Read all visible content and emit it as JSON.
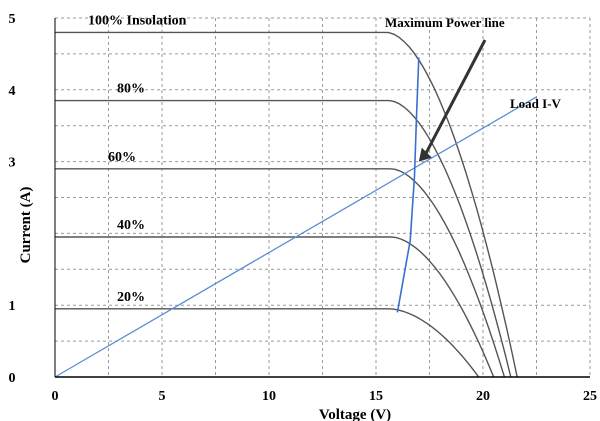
{
  "chart_data": {
    "type": "line",
    "title": "",
    "xlabel": "Voltage (V)",
    "ylabel": "Current (A)",
    "xlim": [
      0,
      25
    ],
    "ylim": [
      0,
      5
    ],
    "x_ticks": [
      "0",
      "5",
      "10",
      "15",
      "20",
      "25"
    ],
    "y_ticks": [
      "0",
      "1",
      "3",
      "4",
      "5"
    ],
    "y_tick_values": [
      0,
      1,
      3,
      4,
      5
    ],
    "grid": true,
    "grid_style": "dashed",
    "series": [
      {
        "name": "100% Insolation",
        "isc": 4.8,
        "voc": 21.6,
        "knee": 15.5
      },
      {
        "name": "80%",
        "isc": 3.85,
        "voc": 21.3,
        "knee": 15.6
      },
      {
        "name": "60%",
        "isc": 2.9,
        "voc": 21.0,
        "knee": 15.7
      },
      {
        "name": "40%",
        "isc": 1.95,
        "voc": 20.5,
        "knee": 15.7
      },
      {
        "name": "20%",
        "isc": 0.95,
        "voc": 19.8,
        "knee": 15.6
      }
    ],
    "load_line": {
      "name": "Load I-V",
      "points": [
        [
          0,
          0
        ],
        [
          22.5,
          3.9
        ]
      ]
    },
    "mpp_line": {
      "name": "Maximum Power line",
      "points": [
        [
          16.0,
          0.9
        ],
        [
          16.6,
          1.9
        ],
        [
          16.8,
          2.8
        ],
        [
          16.9,
          3.7
        ],
        [
          17.0,
          4.45
        ]
      ]
    },
    "annotations": [
      "Maximum Power line",
      "Load I-V"
    ],
    "colors": {
      "iv_curves": "#555555",
      "load_line": "#5b8fd6",
      "mpp_line": "#3a6fd0",
      "grid": "#9a9a9a"
    }
  }
}
